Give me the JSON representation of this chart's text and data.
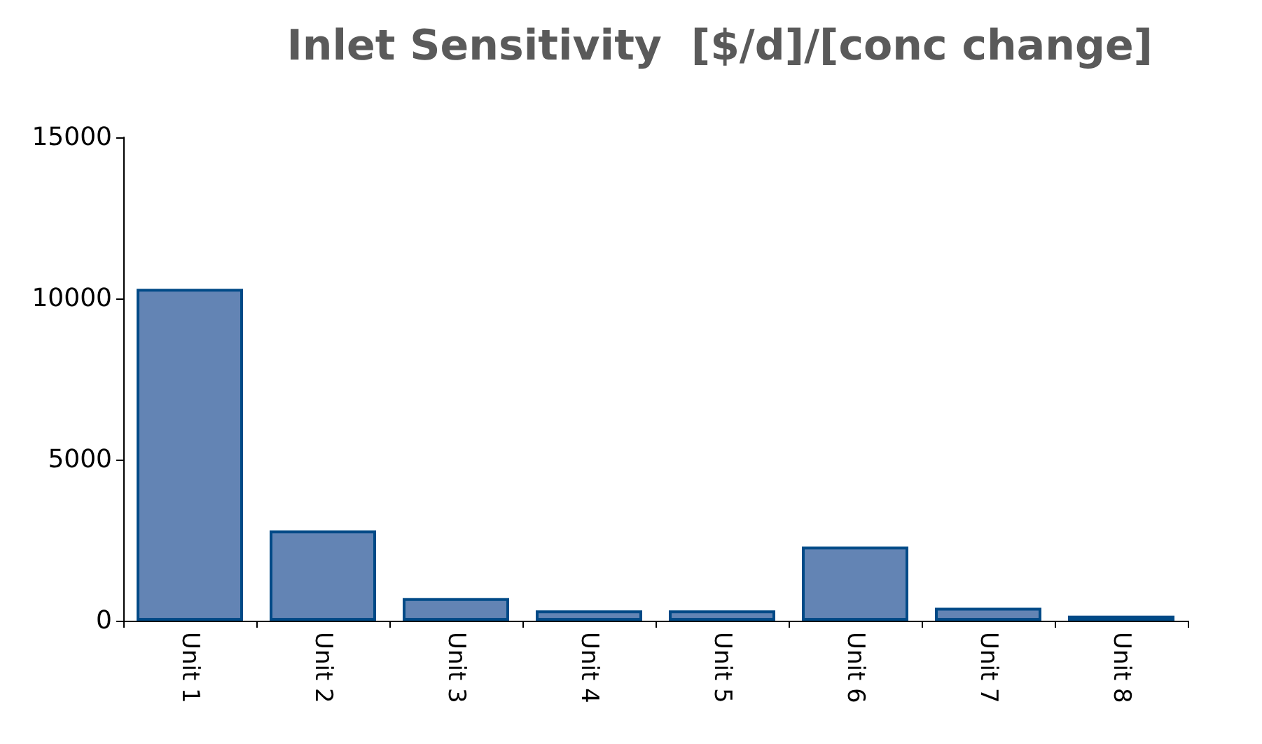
{
  "chart_data": {
    "type": "bar",
    "title": "Inlet Sensitivity  [$/d]/[conc change]",
    "categories": [
      "Unit 1",
      "Unit 2",
      "Unit 3",
      "Unit 4",
      "Unit 5",
      "Unit 6",
      "Unit 7",
      "Unit 8"
    ],
    "values": [
      10300,
      2800,
      700,
      320,
      320,
      2300,
      400,
      160
    ],
    "color": "#6384b4",
    "ylim": [
      0,
      15000
    ],
    "yticks": [
      0,
      5000,
      10000,
      15000
    ],
    "grid": false
  }
}
